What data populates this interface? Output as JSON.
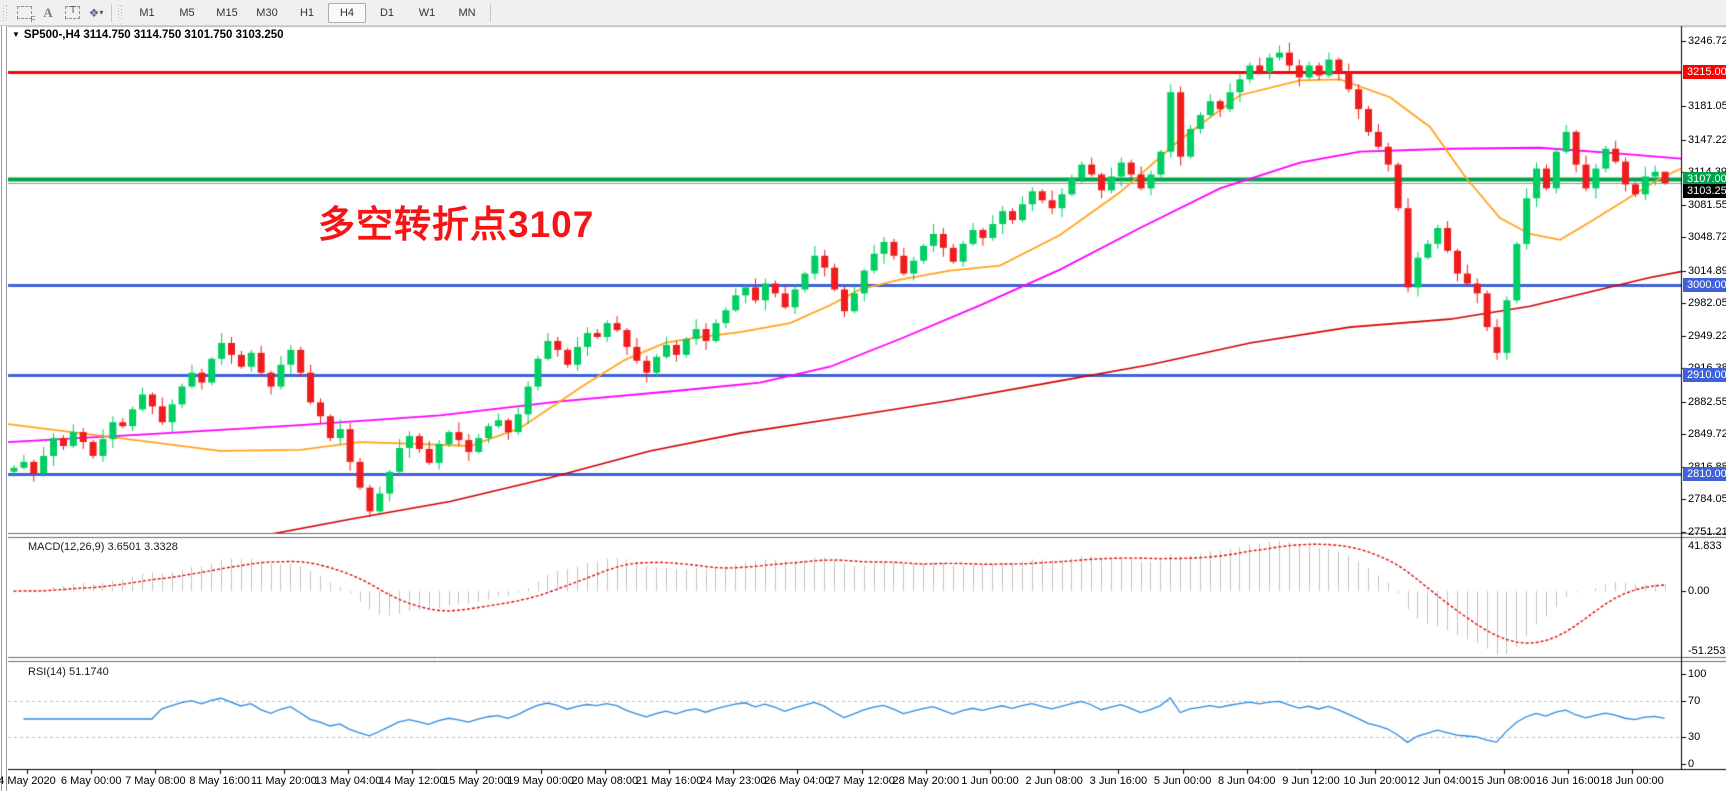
{
  "toolbar": {
    "tools": [
      {
        "name": "chart-shift-icon",
        "glyph": "F"
      },
      {
        "name": "text-label-icon",
        "glyph": "A"
      },
      {
        "name": "text-tool-icon",
        "glyph": "T"
      },
      {
        "name": "arrow-objects-icon",
        "glyph": "❖"
      }
    ],
    "timeframes": [
      {
        "label": "M1",
        "active": false
      },
      {
        "label": "M5",
        "active": false
      },
      {
        "label": "M15",
        "active": false
      },
      {
        "label": "M30",
        "active": false
      },
      {
        "label": "H1",
        "active": false
      },
      {
        "label": "H4",
        "active": true
      },
      {
        "label": "D1",
        "active": false
      },
      {
        "label": "W1",
        "active": false
      },
      {
        "label": "MN",
        "active": false
      }
    ]
  },
  "header": {
    "symbol_line": "SP500-,H4  3114.750 3114.750 3101.750 3103.250"
  },
  "annotation": {
    "text": "多空转折点3107",
    "color": "#f81414"
  },
  "indicators": {
    "macd": {
      "label": "MACD(12,26,9) 3.6501 3.3328",
      "ticks": [
        "41.833",
        "0.00",
        "-51.2535"
      ]
    },
    "rsi": {
      "label": "RSI(14) 51.1740",
      "ticks": [
        "100",
        "70",
        "30",
        "0"
      ],
      "levels": [
        70,
        30
      ]
    }
  },
  "price_axis": {
    "ticks": [
      3246.725,
      3181.055,
      3147.225,
      3114.39,
      3081.555,
      3048.72,
      3014.89,
      2982.055,
      2949.22,
      2916.385,
      2882.555,
      2849.72,
      2816.885,
      2784.05,
      2751.215
    ]
  },
  "hlines": [
    {
      "price": 3215.0,
      "label": "3215.000",
      "color": "#fe0000",
      "width": 3,
      "box": "#fe0000"
    },
    {
      "price": 3107.0,
      "label": "3107.000",
      "color": "#00a24a",
      "width": 4,
      "box": "#00a24a"
    },
    {
      "price": 3103.25,
      "label": "3103.250",
      "color": "#9a9a9a",
      "width": 1,
      "box": "#000000",
      "box_shift": 8
    },
    {
      "price": 3000.0,
      "label": "3000.000",
      "color": "#3f62d9",
      "width": 3,
      "box": "#3f62d9"
    },
    {
      "price": 2910.0,
      "label": "2910.000",
      "color": "#3f62d9",
      "width": 3,
      "box": "#3f62d9"
    },
    {
      "price": 2810.0,
      "label": "2810.000",
      "color": "#3f62d9",
      "width": 3,
      "box": "#3f62d9"
    }
  ],
  "time_axis": {
    "labels": [
      "4 May 2020",
      "6 May 00:00",
      "7 May 08:00",
      "8 May 16:00",
      "11 May 20:00",
      "13 May 04:00",
      "14 May 12:00",
      "15 May 20:00",
      "19 May 00:00",
      "20 May 08:00",
      "21 May 16:00",
      "24 May 23:00",
      "26 May 04:00",
      "27 May 12:00",
      "28 May 20:00",
      "1 Jun 00:00",
      "2 Jun 08:00",
      "3 Jun 16:00",
      "5 Jun 00:00",
      "8 Jun 04:00",
      "9 Jun 12:00",
      "10 Jun 20:00",
      "12 Jun 04:00",
      "15 Jun 08:00",
      "16 Jun 16:00",
      "18 Jun 00:00"
    ]
  },
  "chart_data": {
    "type": "candlestick",
    "symbol": "SP500",
    "timeframe": "H4",
    "title": "SP500-,H4",
    "last_candle": {
      "open": 3114.75,
      "high": 3114.75,
      "low": 3101.75,
      "close": 3103.25
    },
    "ylim": [
      2751.215,
      3246.725
    ],
    "closes": [
      2816,
      2822,
      2810,
      2828,
      2846,
      2838,
      2852,
      2842,
      2828,
      2845,
      2862,
      2858,
      2875,
      2890,
      2878,
      2862,
      2880,
      2898,
      2912,
      2902,
      2926,
      2942,
      2930,
      2918,
      2932,
      2912,
      2898,
      2920,
      2935,
      2912,
      2882,
      2868,
      2846,
      2855,
      2822,
      2796,
      2772,
      2790,
      2812,
      2836,
      2848,
      2835,
      2821,
      2840,
      2852,
      2844,
      2832,
      2846,
      2858,
      2864,
      2852,
      2870,
      2898,
      2926,
      2944,
      2935,
      2920,
      2938,
      2952,
      2948,
      2962,
      2955,
      2938,
      2924,
      2912,
      2928,
      2940,
      2930,
      2946,
      2956,
      2944,
      2962,
      2975,
      2990,
      2998,
      2985,
      3002,
      2992,
      2978,
      2996,
      3012,
      3030,
      3018,
      2996,
      2974,
      2992,
      3015,
      3032,
      3044,
      3030,
      3012,
      3025,
      3040,
      3052,
      3038,
      3024,
      3042,
      3056,
      3048,
      3062,
      3075,
      3066,
      3082,
      3095,
      3086,
      3078,
      3092,
      3108,
      3122,
      3112,
      3096,
      3110,
      3124,
      3112,
      3098,
      3112,
      3135,
      3195,
      3130,
      3158,
      3172,
      3186,
      3178,
      3195,
      3208,
      3222,
      3215,
      3230,
      3235,
      3222,
      3210,
      3222,
      3212,
      3228,
      3215,
      3198,
      3178,
      3155,
      3140,
      3122,
      3078,
      2998,
      3028,
      3042,
      3058,
      3035,
      3012,
      3002,
      2992,
      2958,
      2932,
      2985,
      3042,
      3088,
      3118,
      3098,
      3135,
      3155,
      3122,
      3098,
      3118,
      3138,
      3125,
      3102,
      3092,
      3110,
      3114.8,
      3103.3
    ],
    "wick_pattern_high": [
      3,
      7,
      2,
      9,
      5,
      3,
      8,
      4,
      2,
      10,
      6,
      4
    ],
    "wick_pattern_low": [
      5,
      2,
      8,
      3,
      10,
      4,
      2,
      7,
      3,
      6,
      9,
      2
    ],
    "wick_overrides": {
      "36": {
        "lo": 2766
      },
      "84": {
        "lo": 2968
      },
      "117": {
        "hi": 3203
      },
      "128": {
        "hi": 3242
      },
      "141": {
        "lo": 2993
      },
      "150": {
        "lo": 2925
      },
      "167": {
        "hi": 3114.75,
        "lo": 3101.75
      }
    },
    "moving_averages": {
      "orange": [
        [
          8,
          2860
        ],
        [
          120,
          2846
        ],
        [
          220,
          2833
        ],
        [
          300,
          2834
        ],
        [
          360,
          2842
        ],
        [
          420,
          2840
        ],
        [
          470,
          2838
        ],
        [
          520,
          2856
        ],
        [
          585,
          2900
        ],
        [
          625,
          2925
        ],
        [
          665,
          2942
        ],
        [
          700,
          2948
        ],
        [
          740,
          2953
        ],
        [
          790,
          2962
        ],
        [
          830,
          2980
        ],
        [
          860,
          2996
        ],
        [
          900,
          3006
        ],
        [
          950,
          3015
        ],
        [
          1000,
          3020
        ],
        [
          1060,
          3051
        ],
        [
          1120,
          3094
        ],
        [
          1180,
          3147
        ],
        [
          1240,
          3192
        ],
        [
          1300,
          3207
        ],
        [
          1340,
          3208
        ],
        [
          1390,
          3190
        ],
        [
          1430,
          3160
        ],
        [
          1465,
          3110
        ],
        [
          1500,
          3068
        ],
        [
          1530,
          3052
        ],
        [
          1560,
          3046
        ],
        [
          1590,
          3064
        ],
        [
          1625,
          3086
        ],
        [
          1660,
          3108
        ],
        [
          1681,
          3118
        ]
      ],
      "magenta": [
        [
          8,
          2842
        ],
        [
          150,
          2850
        ],
        [
          300,
          2859
        ],
        [
          440,
          2869
        ],
        [
          560,
          2883
        ],
        [
          680,
          2894
        ],
        [
          760,
          2902
        ],
        [
          830,
          2918
        ],
        [
          900,
          2946
        ],
        [
          980,
          2980
        ],
        [
          1060,
          3016
        ],
        [
          1140,
          3058
        ],
        [
          1220,
          3098
        ],
        [
          1300,
          3124
        ],
        [
          1360,
          3135
        ],
        [
          1450,
          3138
        ],
        [
          1540,
          3139
        ],
        [
          1620,
          3133
        ],
        [
          1681,
          3128
        ]
      ],
      "red": [
        [
          255,
          2746
        ],
        [
          350,
          2764
        ],
        [
          450,
          2782
        ],
        [
          550,
          2806
        ],
        [
          650,
          2833
        ],
        [
          740,
          2851
        ],
        [
          857,
          2869
        ],
        [
          950,
          2884
        ],
        [
          1050,
          2902
        ],
        [
          1150,
          2920
        ],
        [
          1250,
          2942
        ],
        [
          1350,
          2958
        ],
        [
          1450,
          2966
        ],
        [
          1530,
          2979
        ],
        [
          1600,
          2996
        ],
        [
          1650,
          3008
        ],
        [
          1681,
          3014
        ]
      ]
    },
    "colors": {
      "up": "#00cd62",
      "down": "#ee1c1c",
      "macd_hist": "#c4c4c4",
      "macd_signal": "#e01010",
      "rsi": "#2e8be0",
      "level_dash": "#c0c0c0",
      "ma_orange": "#ffa520",
      "ma_magenta": "#ff00ff",
      "ma_red": "#d40000"
    }
  }
}
